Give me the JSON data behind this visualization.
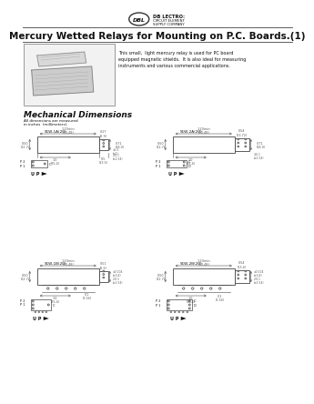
{
  "title": "Mercury Wetted Relays for Mounting on P.C. Boards.(1)",
  "company_name": "DB LECTRO:",
  "company_sub1": "CIRCUIT ELEMENT",
  "company_sub2": "SUPPLY COMPANY",
  "description_lines": [
    "This small,  light mercury relay is used for PC board",
    "equipped magnetic shields.  It is also ideal for measuring",
    "instruments and various commercial applications."
  ],
  "section_title": "Mechanical Dimensions",
  "dim_note1": "All dimensions are measured",
  "dim_note2": "in inches  (millimeters).",
  "diag_tl_label": "S1W-1A(20)",
  "diag_tr_label": "S1W-2A(20)",
  "diag_bl_label": "S1W-1B(20)",
  "diag_br_label": "S1W-2B(20)",
  "up_label": "U P",
  "background": "#ffffff",
  "text_color": "#111111",
  "line_color": "#444444",
  "dim_color": "#555555",
  "box_color": "#cccccc"
}
